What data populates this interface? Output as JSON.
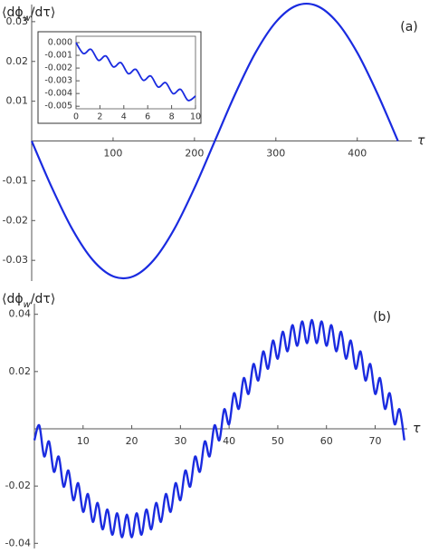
{
  "chart_data": [
    {
      "type": "line",
      "panel_label": "(a)",
      "ylabel": [
        "⟨dϕ",
        "w",
        "/dτ⟩"
      ],
      "xlabel": "τ",
      "x": [
        0,
        25,
        50,
        75,
        100,
        125,
        150,
        175,
        200,
        225,
        250,
        275,
        300,
        325,
        350,
        375,
        400,
        425,
        450
      ],
      "series": [
        {
          "color": "#1a2be0",
          "values": [
            0,
            -0.0118,
            -0.0222,
            -0.0299,
            -0.034,
            -0.034,
            -0.0299,
            -0.0222,
            -0.0118,
            0,
            0.0118,
            0.0222,
            0.0299,
            0.034,
            0.034,
            0.0299,
            0.0222,
            0.0118,
            0
          ]
        }
      ],
      "xlim": [
        0,
        467
      ],
      "ylim": [
        -0.0352,
        0.0343
      ],
      "xticks": [
        100,
        200,
        300,
        400
      ],
      "yticks": [
        -0.03,
        -0.02,
        -0.01,
        0.01,
        0.02,
        0.03
      ]
    },
    {
      "type": "line",
      "frame": true,
      "x": [
        0,
        0.625,
        1.25,
        1.875,
        2.5,
        3.125,
        3.75,
        4.375,
        5,
        5.625,
        6.25,
        6.875,
        7.5,
        8.125,
        8.75,
        9.375,
        10
      ],
      "series": [
        {
          "color": "#1a2be0",
          "values": [
            0,
            -0.00086,
            -0.000525,
            -0.00139,
            -0.00105,
            -0.00191,
            -0.001575,
            -0.00244,
            -0.0021,
            -0.00296,
            -0.002625,
            -0.00349,
            -0.00315,
            -0.00401,
            -0.003675,
            -0.00454,
            -0.0042
          ]
        }
      ],
      "xlim": [
        0,
        10
      ],
      "ylim": [
        -0.0052,
        0.0005
      ],
      "xticks": [
        0,
        2,
        4,
        6,
        8,
        10
      ],
      "yticks": [
        {
          "value": 0,
          "label": "0.000"
        },
        {
          "value": -0.001,
          "label": "-0.001"
        },
        {
          "value": -0.002,
          "label": "-0.002"
        },
        {
          "value": -0.003,
          "label": "-0.003"
        },
        {
          "value": -0.004,
          "label": "-0.004"
        },
        {
          "value": -0.005,
          "label": "-0.005"
        }
      ]
    },
    {
      "type": "line",
      "panel_label": "(b)",
      "ylabel": [
        "⟨dϕ",
        "w",
        "/dτ⟩"
      ],
      "xlabel": "τ",
      "x": [
        0,
        1,
        2,
        3,
        4,
        5,
        6,
        7,
        8,
        9,
        10,
        11,
        12,
        13,
        14,
        15,
        16,
        17,
        18,
        19,
        20,
        21,
        22,
        23,
        24,
        25,
        26,
        27,
        28,
        29,
        30,
        31,
        32,
        33,
        34,
        35,
        36,
        37,
        38,
        39,
        40,
        41,
        42,
        43,
        44,
        45,
        46,
        47,
        48,
        49,
        50,
        51,
        52,
        53,
        54,
        55,
        56,
        57,
        58,
        59,
        60,
        61,
        62,
        63,
        64,
        65,
        66,
        67,
        68,
        69,
        70,
        71,
        72,
        73,
        74,
        75,
        76
      ],
      "series": [
        {
          "color": "#1a2be0",
          "values": [
            -0.004,
            0.0012,
            -0.0096,
            -0.0044,
            -0.015,
            -0.0097,
            -0.0202,
            -0.0146,
            -0.0249,
            -0.019,
            -0.029,
            -0.0228,
            -0.0325,
            -0.0259,
            -0.0351,
            -0.0282,
            -0.037,
            -0.0295,
            -0.0379,
            -0.03,
            -0.0379,
            -0.0295,
            -0.037,
            -0.0282,
            -0.0351,
            -0.0259,
            -0.0325,
            -0.0228,
            -0.029,
            -0.019,
            -0.0249,
            -0.0146,
            -0.0202,
            -0.0097,
            -0.015,
            -0.0044,
            -0.0096,
            0.0012,
            -0.004,
            0.0068,
            0.0016,
            0.0124,
            0.007,
            0.0177,
            0.0122,
            0.0226,
            0.0169,
            0.027,
            0.021,
            0.0308,
            0.0245,
            0.0339,
            0.0271,
            0.0362,
            0.029,
            0.0375,
            0.0299,
            0.038,
            0.0299,
            0.0375,
            0.029,
            0.0362,
            0.0271,
            0.0339,
            0.0245,
            0.0308,
            0.021,
            0.027,
            0.0169,
            0.0226,
            0.0122,
            0.0177,
            0.007,
            0.0124,
            0.0016,
            0.0068,
            -0.004
          ]
        }
      ],
      "xlim": [
        0,
        76.6
      ],
      "ylim": [
        -0.0418,
        0.0437
      ],
      "xticks": [
        10,
        20,
        30,
        40,
        50,
        60,
        70
      ],
      "yticks": [
        -0.04,
        -0.02,
        0.02,
        0.04
      ]
    }
  ]
}
